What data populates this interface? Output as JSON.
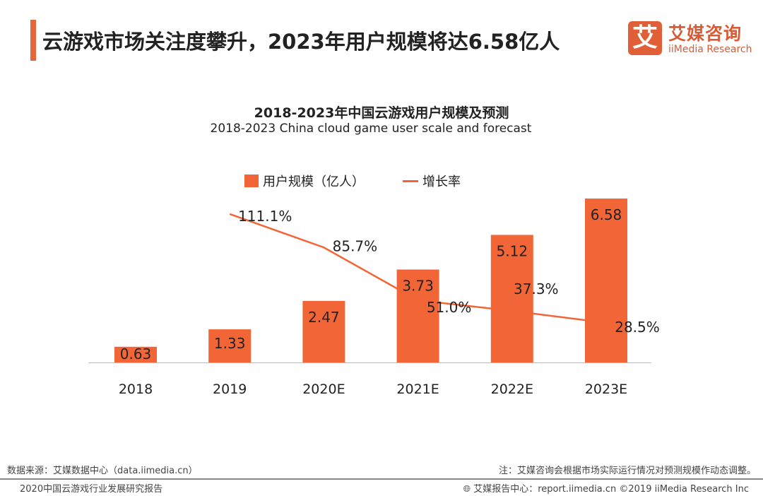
{
  "header": {
    "title": "云游戏市场关注度攀升，2023年用户规模将达6.58亿人",
    "logo_cn": "艾媒咨询",
    "logo_en": "iiMedia Research",
    "logo_mark": "艾"
  },
  "chart_data": {
    "type": "bar+line",
    "title": "2018-2023年中国云游戏用户规模及预测",
    "subtitle": "2018-2023 China cloud game user scale and forecast",
    "categories": [
      "2018",
      "2019",
      "2020E",
      "2021E",
      "2022E",
      "2023E"
    ],
    "series": [
      {
        "name": "用户规模（亿人）",
        "type": "bar",
        "values": [
          0.63,
          1.33,
          2.47,
          3.73,
          5.12,
          6.58
        ],
        "labels": [
          "0.63",
          "1.33",
          "2.47",
          "3.73",
          "5.12",
          "6.58"
        ]
      },
      {
        "name": "增长率",
        "type": "line",
        "values": [
          null,
          111.1,
          85.7,
          51.0,
          37.3,
          28.5
        ],
        "labels": [
          "",
          "111.1%",
          "85.7%",
          "51.0%",
          "37.3%",
          "28.5%"
        ]
      }
    ],
    "colors": {
      "bar": "#f26536",
      "line": "#f26536"
    },
    "legend": "top-center",
    "grid": false
  },
  "footer": {
    "source": "数据来源：艾媒数据中心（data.iimedia.cn）",
    "note": "注：艾媒咨询会根据市场实际运行情况对预测规模作动态调整。",
    "report": "2020中国云游戏行业发展研究报告",
    "site": "艾媒报告中心：report.iimedia.cn ©2019  iiMedia Research  Inc"
  }
}
